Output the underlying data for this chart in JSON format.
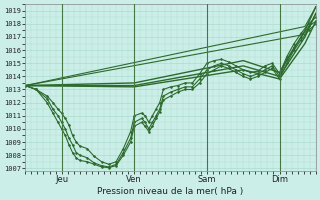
{
  "title": "Pression niveau de la mer( hPa )",
  "ylabel_values": [
    1007,
    1008,
    1009,
    1010,
    1011,
    1012,
    1013,
    1014,
    1015,
    1016,
    1017,
    1018,
    1019
  ],
  "ylim": [
    1006.8,
    1019.5
  ],
  "xlim": [
    0.0,
    4.0
  ],
  "xtick_positions": [
    0.5,
    1.5,
    2.5,
    3.5
  ],
  "xtick_labels": [
    "Jeu",
    "Ven",
    "Sam",
    "Dim"
  ],
  "vline_positions": [
    0.5,
    1.5,
    2.5,
    3.5
  ],
  "bg_color": "#cceee8",
  "grid_color": "#aaddcc",
  "line_color": "#2d6a2d",
  "marker_color": "#2d6a2d",
  "lines": [
    {
      "x": [
        0.0,
        1.5,
        3.0,
        3.5,
        3.85,
        4.0
      ],
      "y": [
        1013.3,
        1013.5,
        1015.2,
        1014.3,
        1017.5,
        1019.3
      ],
      "style": "-",
      "marker": null,
      "markersize": 0,
      "linewidth": 1.0
    },
    {
      "x": [
        0.0,
        1.5,
        3.0,
        3.5,
        3.85,
        4.0
      ],
      "y": [
        1013.3,
        1013.3,
        1014.8,
        1014.0,
        1017.0,
        1018.8
      ],
      "style": "-",
      "marker": null,
      "markersize": 0,
      "linewidth": 1.0
    },
    {
      "x": [
        0.0,
        1.5,
        3.0,
        3.5,
        3.85,
        4.0
      ],
      "y": [
        1013.3,
        1013.2,
        1014.5,
        1013.8,
        1016.5,
        1018.2
      ],
      "style": "-",
      "marker": null,
      "markersize": 0,
      "linewidth": 1.0
    },
    {
      "x": [
        0.0,
        0.15,
        0.3,
        0.38,
        0.45,
        0.5,
        0.55,
        0.6,
        0.65,
        0.7,
        0.75,
        0.85,
        0.95,
        1.05,
        1.15,
        1.25,
        1.35,
        1.45,
        1.5,
        1.6,
        1.65,
        1.7,
        1.75,
        1.8,
        1.85,
        1.9,
        2.0,
        2.1,
        2.2,
        2.3,
        2.4,
        2.5,
        2.6,
        2.7,
        2.8,
        2.9,
        3.0,
        3.1,
        3.2,
        3.3,
        3.4,
        3.5,
        3.6,
        3.7,
        3.8,
        3.9,
        4.0
      ],
      "y": [
        1013.3,
        1013.0,
        1012.5,
        1012.0,
        1011.5,
        1011.2,
        1010.8,
        1010.3,
        1009.5,
        1009.0,
        1008.7,
        1008.5,
        1007.9,
        1007.5,
        1007.3,
        1007.5,
        1008.5,
        1009.8,
        1011.0,
        1011.2,
        1011.0,
        1010.5,
        1011.0,
        1011.5,
        1012.0,
        1013.0,
        1013.2,
        1013.3,
        1013.5,
        1013.5,
        1014.2,
        1015.0,
        1015.2,
        1015.3,
        1015.1,
        1014.8,
        1014.5,
        1014.3,
        1014.4,
        1014.8,
        1015.0,
        1014.2,
        1015.5,
        1016.5,
        1017.3,
        1018.0,
        1018.5
      ],
      "style": "-",
      "marker": ".",
      "markersize": 2.5,
      "linewidth": 0.8
    },
    {
      "x": [
        0.0,
        0.15,
        0.3,
        0.38,
        0.45,
        0.5,
        0.55,
        0.6,
        0.65,
        0.7,
        0.75,
        0.85,
        0.95,
        1.05,
        1.15,
        1.25,
        1.35,
        1.45,
        1.5,
        1.6,
        1.65,
        1.7,
        1.75,
        1.8,
        1.85,
        1.9,
        2.0,
        2.1,
        2.2,
        2.3,
        2.4,
        2.5,
        2.6,
        2.7,
        2.8,
        2.9,
        3.0,
        3.1,
        3.2,
        3.3,
        3.4,
        3.5,
        3.6,
        3.7,
        3.8,
        3.9,
        4.0
      ],
      "y": [
        1013.3,
        1013.0,
        1012.3,
        1011.5,
        1011.0,
        1010.5,
        1010.0,
        1009.3,
        1008.8,
        1008.2,
        1008.0,
        1007.8,
        1007.4,
        1007.2,
        1007.1,
        1007.3,
        1008.2,
        1009.3,
        1010.5,
        1010.8,
        1010.5,
        1010.0,
        1010.5,
        1011.0,
        1011.5,
        1012.5,
        1012.8,
        1013.0,
        1013.2,
        1013.2,
        1013.8,
        1014.5,
        1014.8,
        1015.0,
        1014.8,
        1014.5,
        1014.2,
        1014.0,
        1014.2,
        1014.5,
        1014.8,
        1014.0,
        1015.3,
        1016.2,
        1017.0,
        1017.8,
        1018.2
      ],
      "style": "-",
      "marker": ".",
      "markersize": 2.5,
      "linewidth": 0.8
    },
    {
      "x": [
        0.0,
        0.15,
        0.3,
        0.38,
        0.45,
        0.5,
        0.55,
        0.6,
        0.65,
        0.7,
        0.75,
        0.85,
        0.95,
        1.05,
        1.15,
        1.25,
        1.35,
        1.45,
        1.5,
        1.6,
        1.65,
        1.7,
        1.75,
        1.8,
        1.85,
        1.9,
        2.0,
        2.1,
        2.2,
        2.3,
        2.4,
        2.5,
        2.6,
        2.7,
        2.8,
        2.9,
        3.0,
        3.1,
        3.2,
        3.3,
        3.4,
        3.5,
        3.6,
        3.7,
        3.8,
        3.9,
        4.0
      ],
      "y": [
        1013.3,
        1013.0,
        1012.0,
        1011.2,
        1010.5,
        1010.0,
        1009.5,
        1008.8,
        1008.2,
        1007.8,
        1007.6,
        1007.5,
        1007.3,
        1007.1,
        1007.05,
        1007.2,
        1008.0,
        1009.0,
        1010.2,
        1010.5,
        1010.2,
        1009.8,
        1010.2,
        1010.8,
        1011.3,
        1012.2,
        1012.5,
        1012.8,
        1013.0,
        1013.0,
        1013.5,
        1014.2,
        1014.5,
        1014.8,
        1014.6,
        1014.3,
        1014.0,
        1013.8,
        1014.0,
        1014.3,
        1014.6,
        1013.8,
        1015.0,
        1016.0,
        1016.8,
        1017.5,
        1018.0
      ],
      "style": "-",
      "marker": ".",
      "markersize": 2.5,
      "linewidth": 0.8
    },
    {
      "x": [
        0.0,
        3.85,
        4.0
      ],
      "y": [
        1013.3,
        1017.8,
        1019.3
      ],
      "style": "-",
      "marker": null,
      "markersize": 0,
      "linewidth": 0.8
    },
    {
      "x": [
        0.0,
        3.85,
        4.0
      ],
      "y": [
        1013.3,
        1017.2,
        1018.8
      ],
      "style": "-",
      "marker": null,
      "markersize": 0,
      "linewidth": 0.8
    }
  ]
}
